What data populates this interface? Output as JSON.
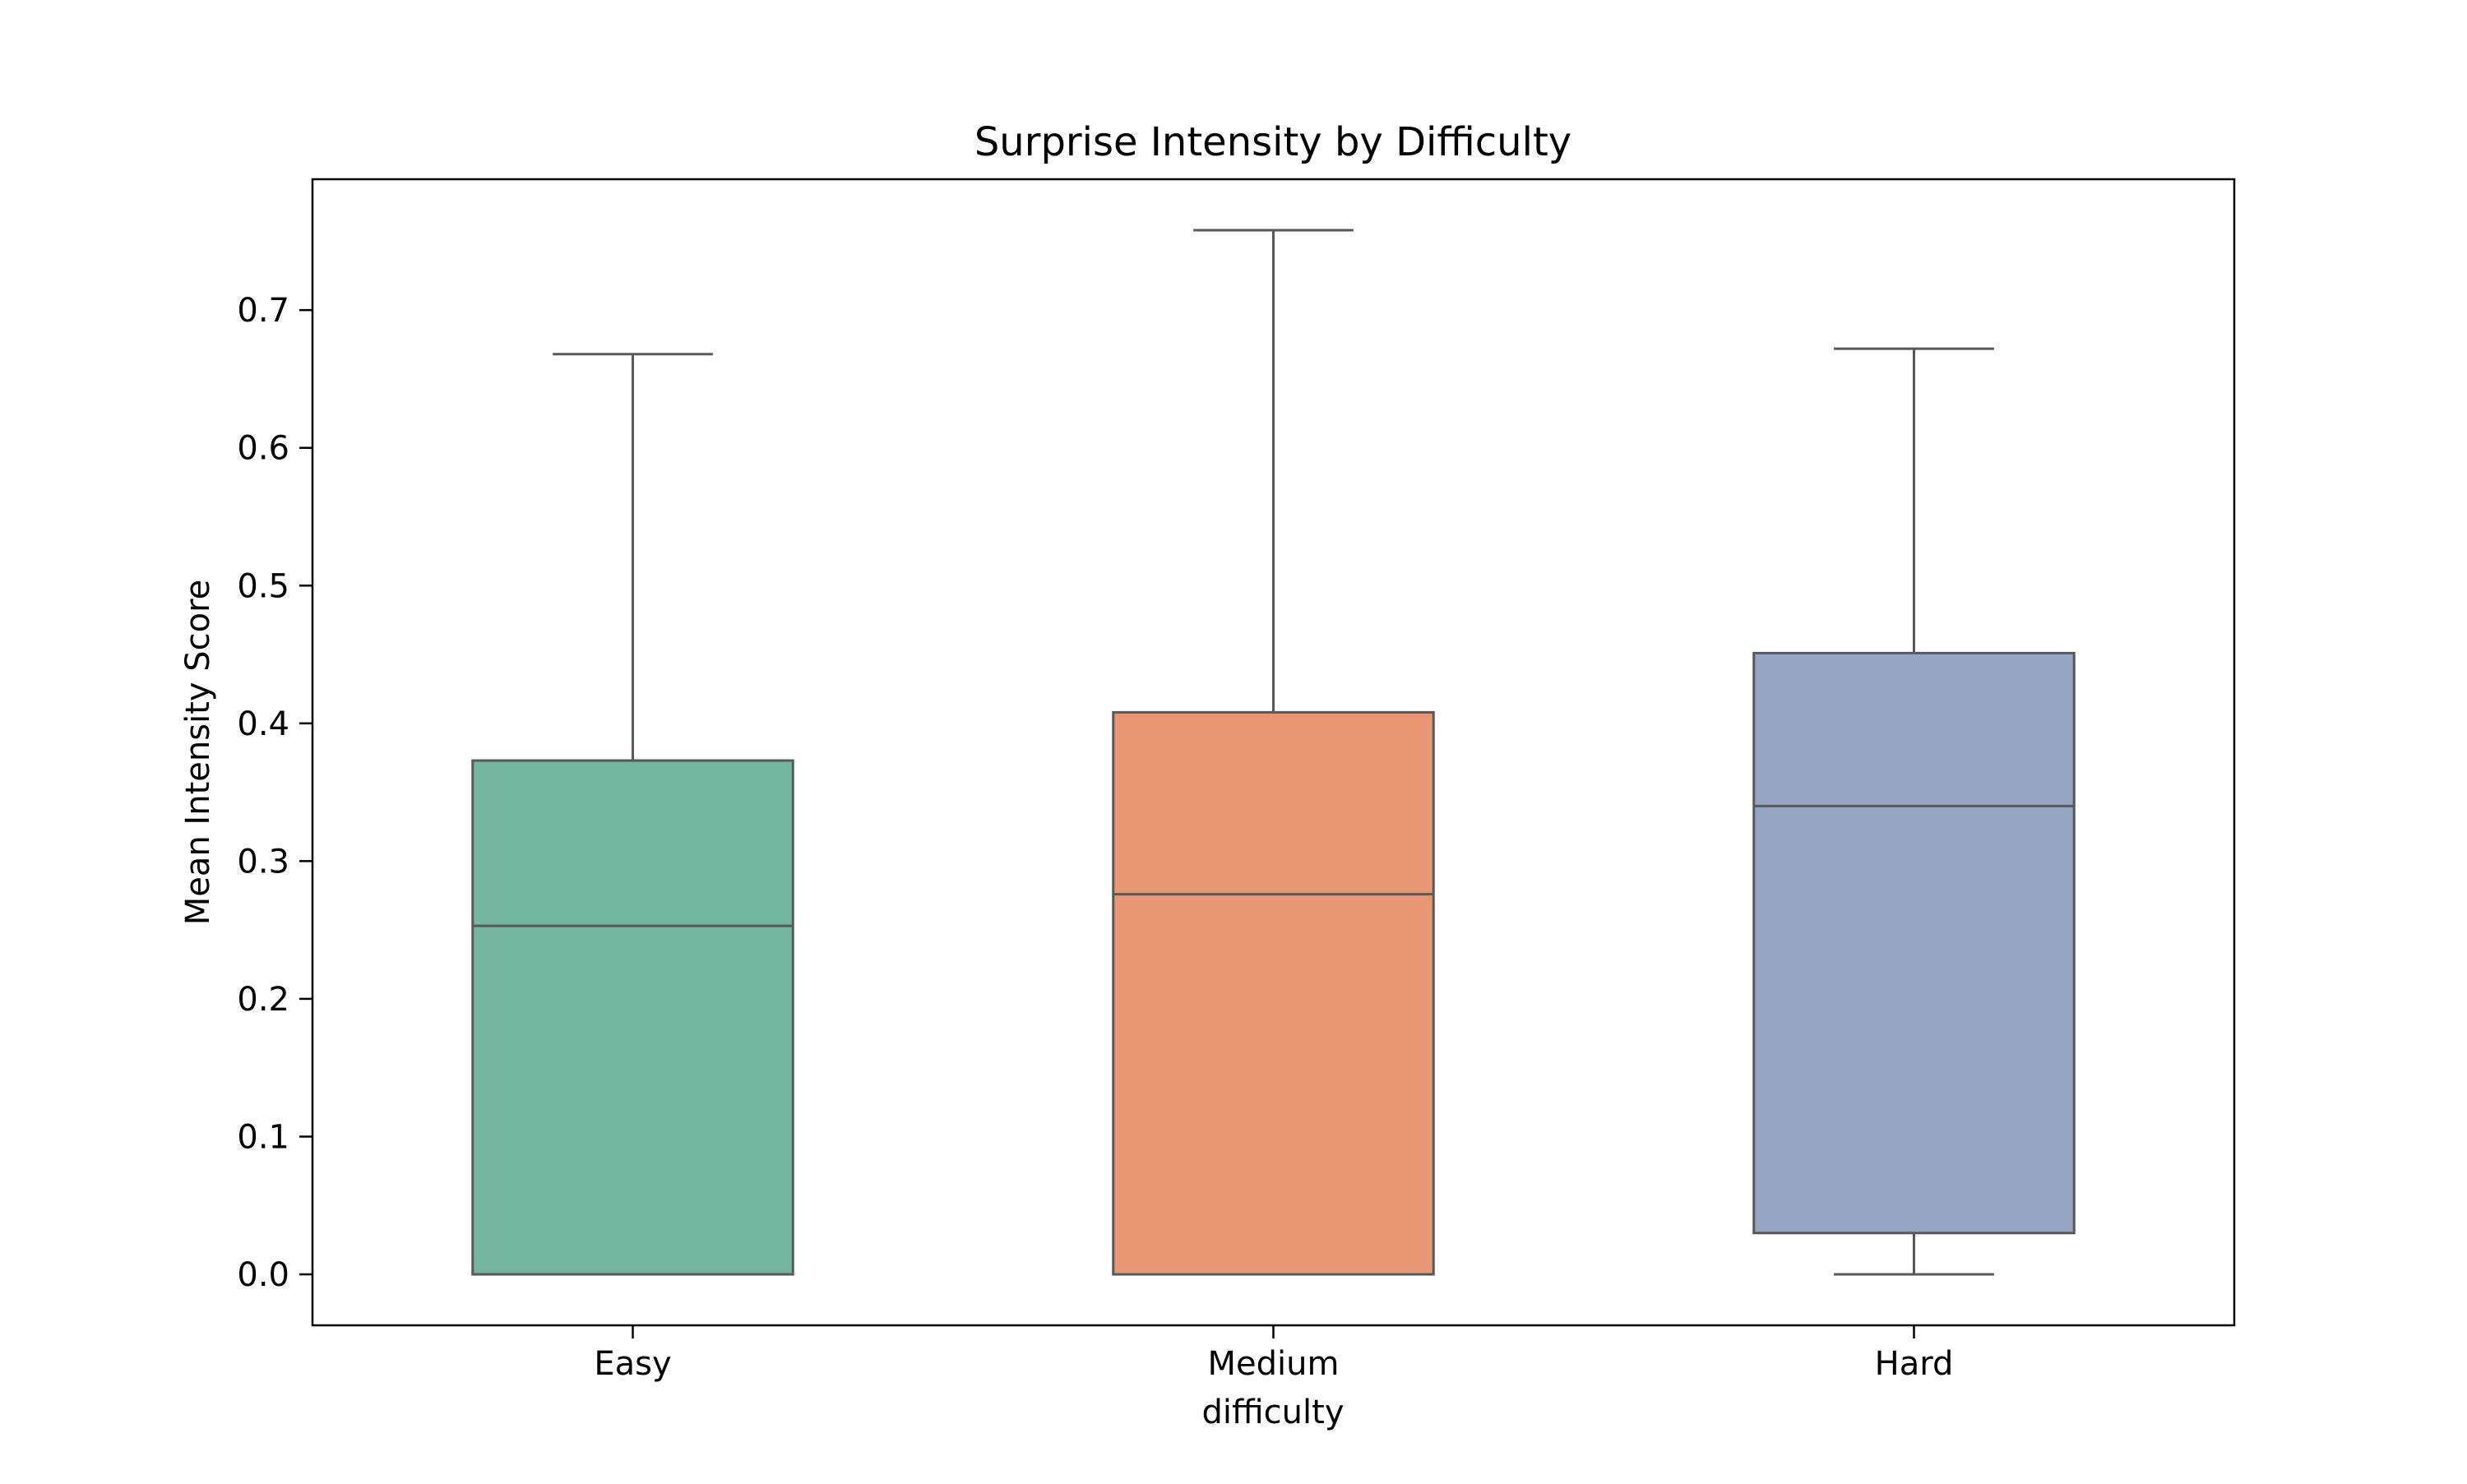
{
  "chart_data": {
    "type": "box",
    "title": "Surprise Intensity by Difficulty",
    "xlabel": "difficulty",
    "ylabel": "Mean Intensity Score",
    "categories": [
      "Easy",
      "Medium",
      "Hard"
    ],
    "ylim": [
      -0.037,
      0.795
    ],
    "yticks": [
      0.0,
      0.1,
      0.2,
      0.3,
      0.4,
      0.5,
      0.6,
      0.7
    ],
    "ytick_labels": [
      "0.0",
      "0.1",
      "0.2",
      "0.3",
      "0.4",
      "0.5",
      "0.6",
      "0.7"
    ],
    "grid": false,
    "series": [
      {
        "category": "Easy",
        "min": 0.0,
        "q1": 0.0,
        "median": 0.253,
        "q3": 0.373,
        "max": 0.668,
        "color": "#74b59f"
      },
      {
        "category": "Medium",
        "min": 0.0,
        "q1": 0.0,
        "median": 0.276,
        "q3": 0.408,
        "max": 0.758,
        "color": "#e99674"
      },
      {
        "category": "Hard",
        "min": 0.0,
        "q1": 0.03,
        "median": 0.34,
        "q3": 0.451,
        "max": 0.672,
        "color": "#95a4c2"
      }
    ],
    "line_color": "#595959"
  }
}
